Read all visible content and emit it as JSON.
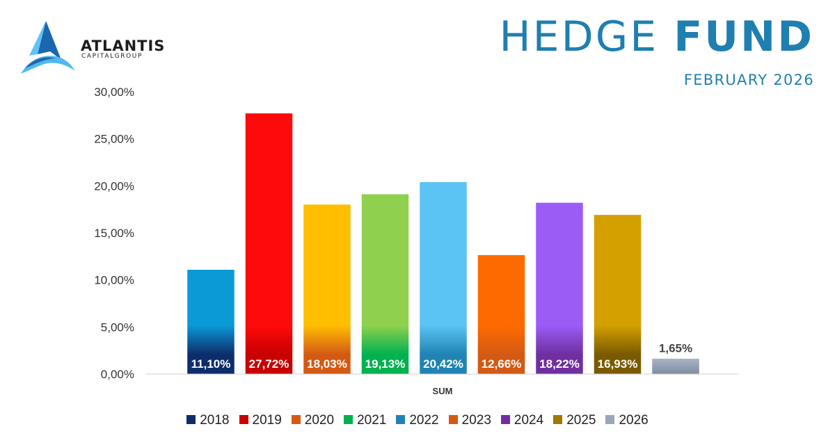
{
  "logo": {
    "name": "ATLANTIS",
    "sub": "CAPITALGROUP"
  },
  "header": {
    "title_light": "HEDGE",
    "title_bold": "FUND",
    "subtitle": "FEBRUARY 2026"
  },
  "chart_data": {
    "type": "bar",
    "title": "HEDGE FUND",
    "xlabel": "SUM",
    "ylabel": "",
    "categories": [
      "SUM"
    ],
    "ylim": [
      0,
      30
    ],
    "yticks": [
      "0,00%",
      "5,00%",
      "10,00%",
      "15,00%",
      "20,00%",
      "25,00%",
      "30,00%"
    ],
    "legend_position": "bottom",
    "grid": false,
    "series": [
      {
        "name": "2018",
        "values": [
          11.1
        ],
        "label": "11,10%",
        "color": "#0a9ad6",
        "dark": "#0d2d6b",
        "legend_color": "#0d2d6b"
      },
      {
        "name": "2019",
        "values": [
          27.72
        ],
        "label": "27,72%",
        "color": "#ff0a0a",
        "dark": "#c80000",
        "legend_color": "#c80000"
      },
      {
        "name": "2020",
        "values": [
          18.03
        ],
        "label": "18,03%",
        "color": "#ffbe00",
        "dark": "#d45a14",
        "legend_color": "#d45a14"
      },
      {
        "name": "2021",
        "values": [
          19.13
        ],
        "label": "19,13%",
        "color": "#8fd14f",
        "dark": "#00b14f",
        "legend_color": "#00b14f"
      },
      {
        "name": "2022",
        "values": [
          20.42
        ],
        "label": "20,42%",
        "color": "#5bc4f5",
        "dark": "#1f84b3",
        "legend_color": "#1f84b3"
      },
      {
        "name": "2023",
        "values": [
          12.66
        ],
        "label": "12,66%",
        "color": "#ff6a00",
        "dark": "#d45a14",
        "legend_color": "#d45a14"
      },
      {
        "name": "2024",
        "values": [
          18.22
        ],
        "label": "18,22%",
        "color": "#9b5cf6",
        "dark": "#6f2fa0",
        "legend_color": "#6f2fa0"
      },
      {
        "name": "2025",
        "values": [
          16.93
        ],
        "label": "16,93%",
        "color": "#d4a000",
        "dark": "#7a5a00",
        "legend_color": "#a07800"
      },
      {
        "name": "2026",
        "values": [
          1.65
        ],
        "label": "1,65%",
        "color": "#a9b4c6",
        "dark": "#7f8ca1",
        "legend_color": "#9aa6ba"
      }
    ]
  }
}
